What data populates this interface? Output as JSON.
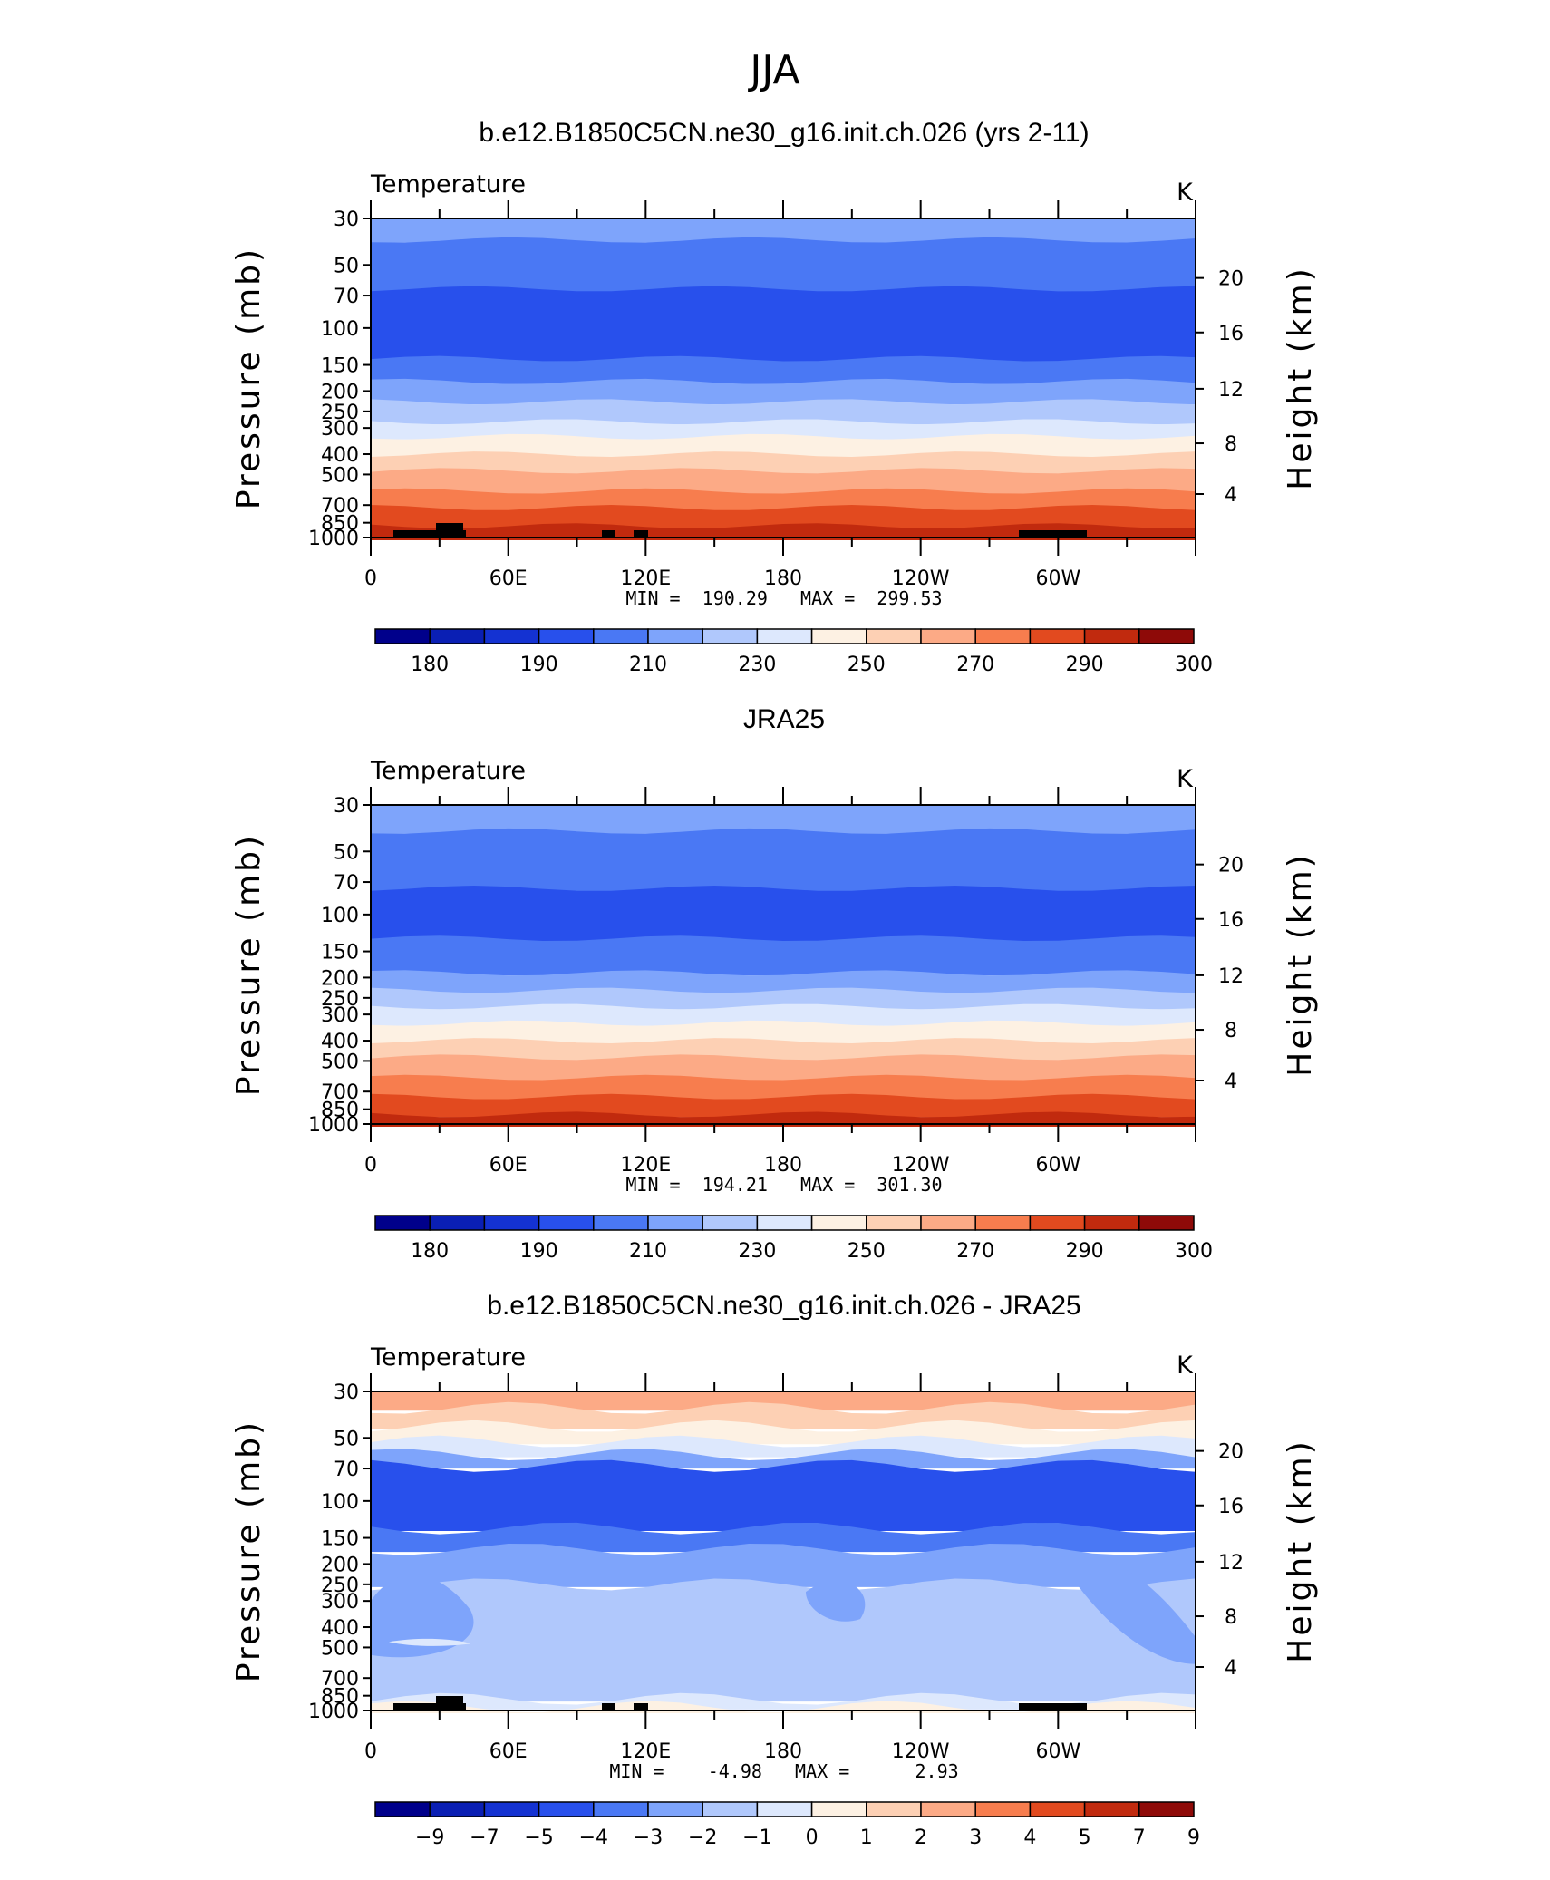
{
  "figure_title": "JJA",
  "colors": {
    "levels": [
      "#00008b",
      "#0a1fb4",
      "#1432d2",
      "#2850ec",
      "#4a78f4",
      "#7ea4fb",
      "#b0c8fc",
      "#dde8fd",
      "#fdf1e3",
      "#fdd0b4",
      "#fcaa86",
      "#f77d4e",
      "#e24a1f",
      "#c12a0e",
      "#8e0a08"
    ]
  },
  "chart_data": [
    {
      "type": "heatmap",
      "title": "b.e12.B1850C5CN.ne30_g16.init.ch.026 (yrs 2-11)",
      "left_label": "Temperature",
      "units": "K",
      "ylabel": "Pressure (mb)",
      "ylabel_right": "Height (km)",
      "y_ticks": [
        "30",
        "50",
        "70",
        "100",
        "150",
        "200",
        "250",
        "300",
        "400",
        "500",
        "700",
        "850",
        "1000"
      ],
      "y_right_ticks": [
        "20",
        "16",
        "12",
        "8",
        "4"
      ],
      "x_ticks": [
        "0",
        "60E",
        "120E",
        "180",
        "120W",
        "60W"
      ],
      "minmax_text": "MIN =  190.29   MAX =  299.53",
      "colorbar_labels": [
        "180",
        "190",
        "210",
        "230",
        "250",
        "270",
        "290",
        "300"
      ],
      "colorbar_label_positions": [
        1,
        3,
        5,
        7,
        9,
        11,
        13,
        15
      ],
      "bands": [
        {
          "p": 30,
          "level": 5
        },
        {
          "p": 38,
          "level": 4
        },
        {
          "p": 65,
          "level": 3
        },
        {
          "p": 140,
          "level": 4
        },
        {
          "p": 180,
          "level": 5
        },
        {
          "p": 225,
          "level": 6
        },
        {
          "p": 280,
          "level": 7
        },
        {
          "p": 330,
          "level": 8
        },
        {
          "p": 400,
          "level": 9
        },
        {
          "p": 480,
          "level": 10
        },
        {
          "p": 600,
          "level": 11
        },
        {
          "p": 720,
          "level": 12
        },
        {
          "p": 880,
          "level": 13
        }
      ],
      "topography": true
    },
    {
      "type": "heatmap",
      "title": "JRA25",
      "left_label": "Temperature",
      "units": "K",
      "ylabel": "Pressure (mb)",
      "ylabel_right": "Height (km)",
      "y_ticks": [
        "30",
        "50",
        "70",
        "100",
        "150",
        "200",
        "250",
        "300",
        "400",
        "500",
        "700",
        "850",
        "1000"
      ],
      "y_right_ticks": [
        "20",
        "16",
        "12",
        "8",
        "4"
      ],
      "x_ticks": [
        "0",
        "60E",
        "120E",
        "180",
        "120W",
        "60W"
      ],
      "minmax_text": "MIN =  194.21   MAX =  301.30",
      "colorbar_labels": [
        "180",
        "190",
        "210",
        "230",
        "250",
        "270",
        "290",
        "300"
      ],
      "colorbar_label_positions": [
        1,
        3,
        5,
        7,
        9,
        11,
        13,
        15
      ],
      "bands": [
        {
          "p": 30,
          "level": 5
        },
        {
          "p": 40,
          "level": 4
        },
        {
          "p": 75,
          "level": 3
        },
        {
          "p": 130,
          "level": 4
        },
        {
          "p": 190,
          "level": 5
        },
        {
          "p": 230,
          "level": 6
        },
        {
          "p": 275,
          "level": 7
        },
        {
          "p": 330,
          "level": 8
        },
        {
          "p": 400,
          "level": 9
        },
        {
          "p": 480,
          "level": 10
        },
        {
          "p": 600,
          "level": 11
        },
        {
          "p": 740,
          "level": 12
        },
        {
          "p": 900,
          "level": 13
        }
      ],
      "topography": false
    },
    {
      "type": "heatmap",
      "title": "b.e12.B1850C5CN.ne30_g16.init.ch.026 - JRA25",
      "left_label": "Temperature",
      "units": "K",
      "ylabel": "Pressure (mb)",
      "ylabel_right": "Height (km)",
      "y_ticks": [
        "30",
        "50",
        "70",
        "100",
        "150",
        "200",
        "250",
        "300",
        "400",
        "500",
        "700",
        "850",
        "1000"
      ],
      "y_right_ticks": [
        "20",
        "16",
        "12",
        "8",
        "4"
      ],
      "x_ticks": [
        "0",
        "60E",
        "120E",
        "180",
        "120W",
        "60W"
      ],
      "minmax_text": "MIN =    -4.98   MAX =      2.93",
      "colorbar_labels": [
        "-9",
        "-7",
        "-5",
        "-4",
        "-3",
        "-2",
        "-1",
        "0",
        "1",
        "2",
        "3",
        "4",
        "5",
        "7",
        "9"
      ],
      "colorbar_label_positions": [
        1,
        2,
        3,
        4,
        5,
        6,
        7,
        8,
        9,
        10,
        11,
        12,
        13,
        14,
        15
      ],
      "bands": [
        {
          "p": 30,
          "level": 10
        },
        {
          "p": 36,
          "level": 9
        },
        {
          "p": 44,
          "level": 8
        },
        {
          "p": 52,
          "level": 7
        },
        {
          "p": 60,
          "level": 5
        },
        {
          "p": 68,
          "level": 3
        },
        {
          "p": 135,
          "level": 4
        },
        {
          "p": 170,
          "level": 5
        },
        {
          "p": 250,
          "level": 6
        },
        {
          "p": 880,
          "level": 7
        },
        {
          "p": 960,
          "level": 8
        }
      ],
      "topography": true
    }
  ]
}
